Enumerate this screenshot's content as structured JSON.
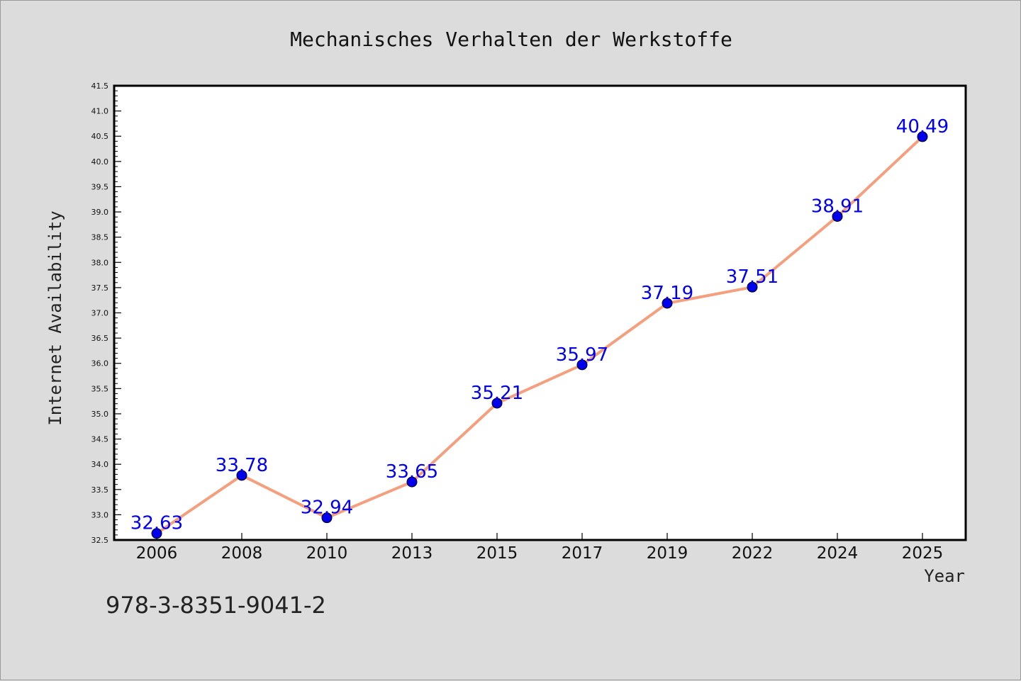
{
  "chart_data": {
    "type": "line",
    "title": "Mechanisches Verhalten der Werkstoffe",
    "xlabel": "Year",
    "ylabel": "Internet Availability",
    "categories": [
      "2006",
      "2008",
      "2010",
      "2013",
      "2015",
      "2017",
      "2019",
      "2022",
      "2024",
      "2025"
    ],
    "series": [
      {
        "values": [
          32.63,
          33.78,
          32.94,
          33.65,
          35.21,
          35.97,
          37.19,
          37.51,
          38.91,
          40.49
        ],
        "line_color": "#f4a07e",
        "marker_color": "#0000ee"
      }
    ],
    "data_labels": [
      "32.63",
      "33.78",
      "32.94",
      "33.65",
      "35.21",
      "35.97",
      "37.19",
      "37.51",
      "38.91",
      "40.49"
    ],
    "data_label_color": "#0000ee",
    "ylim": [
      32.5,
      41.5
    ],
    "yticks": [
      "32.5",
      "33.0",
      "33.5",
      "34.0",
      "34.5",
      "35.0",
      "35.5",
      "36.0",
      "36.5",
      "37.0",
      "37.5",
      "38.0",
      "38.5",
      "39.0",
      "39.5",
      "40.0",
      "40.5",
      "41.0",
      "41.5"
    ],
    "grid": false,
    "legend": "none",
    "plot_background": "#ffffff",
    "figure_background": "#dcdcdc"
  },
  "footer_text": "978-3-8351-9041-2"
}
